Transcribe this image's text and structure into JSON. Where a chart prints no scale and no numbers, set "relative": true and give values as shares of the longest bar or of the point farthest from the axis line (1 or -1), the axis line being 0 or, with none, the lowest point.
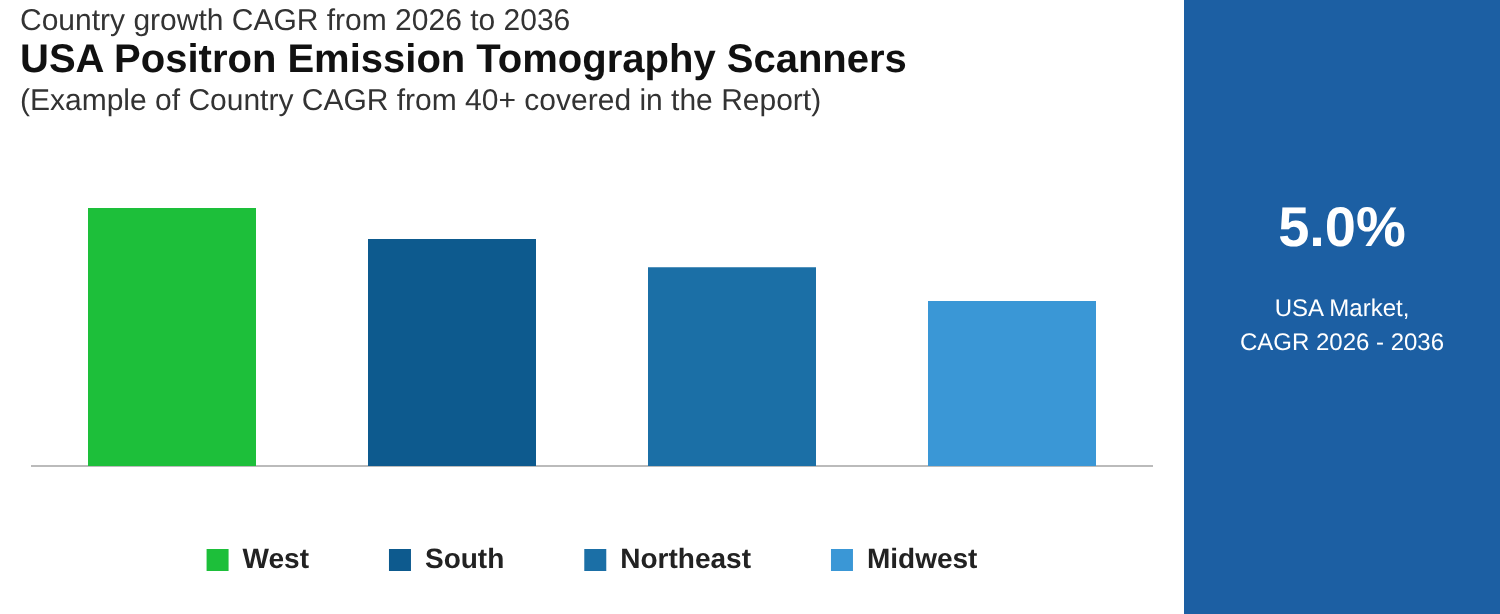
{
  "chart_data": [
    {
      "type": "bar",
      "title": "USA Positron Emission Tomography Scanners",
      "subtitle": "(Example of Country CAGR from 40+ covered in the Report)",
      "annotations": [
        "Country growth CAGR from 2026 to 2036"
      ],
      "categories": [
        null,
        null,
        null,
        null
      ],
      "series": [
        {
          "name": "West",
          "color": "#1dbf3a",
          "values": [
            1,
            null,
            null,
            null
          ]
        },
        {
          "name": "South",
          "color": "#0d5a8e",
          "values": [
            null,
            0.88,
            null,
            null
          ]
        },
        {
          "name": "Northeast",
          "color": "#1b6fa6",
          "values": [
            null,
            null,
            0.77,
            null
          ]
        },
        {
          "name": "Midwest",
          "color": "#3a97d6",
          "values": [
            null,
            null,
            null,
            0.64
          ]
        }
      ],
      "relative": true,
      "stacked": true,
      "legend": "bottom",
      "grid": false
    },
    {
      "type": "other",
      "title": "5.0%",
      "annotations": [
        "USA Market,",
        "CAGR 2026 - 2036"
      ]
    }
  ]
}
